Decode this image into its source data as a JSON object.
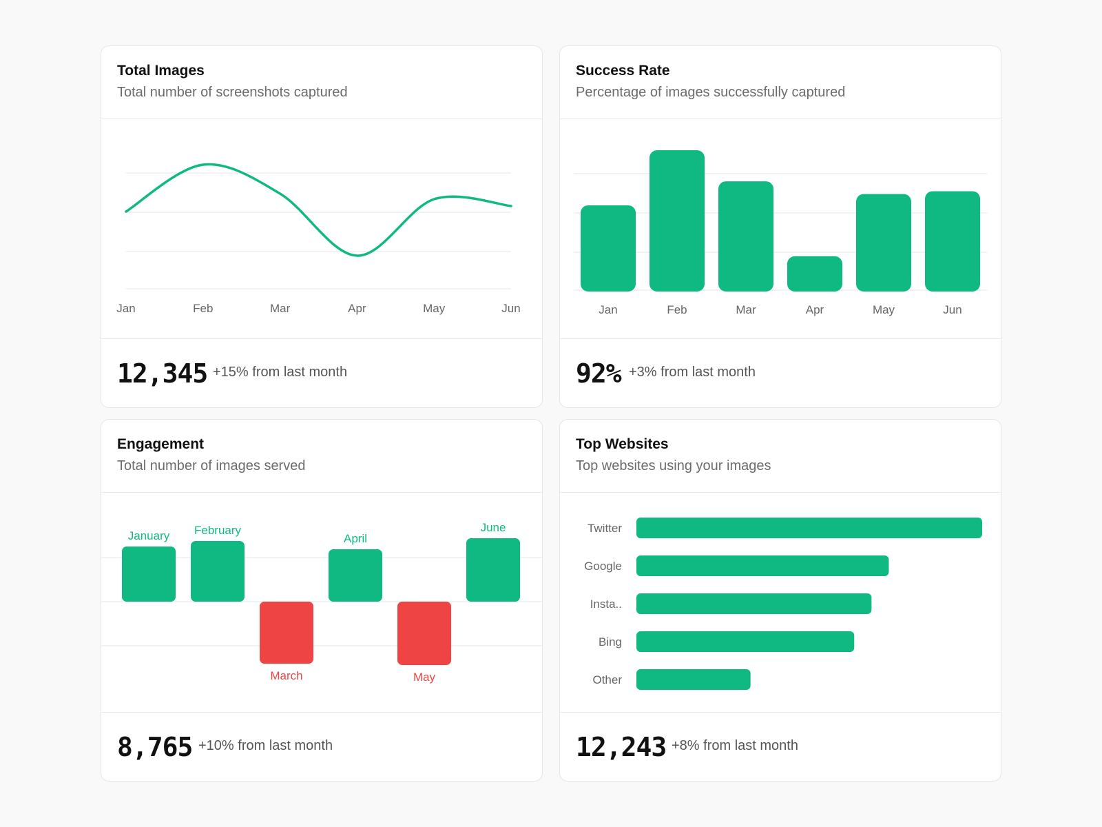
{
  "colors": {
    "accent": "#10b981",
    "negative": "#ef4444",
    "grid": "#e5e5e5",
    "axis_text": "#666666"
  },
  "cards": {
    "total_images": {
      "title": "Total Images",
      "subtitle": "Total number of screenshots captured",
      "value": "12,345",
      "delta": "+15% from last month"
    },
    "success_rate": {
      "title": "Success Rate",
      "subtitle": "Percentage of images successfully captured",
      "value": "92%",
      "delta": "+3% from last month"
    },
    "engagement": {
      "title": "Engagement",
      "subtitle": "Total number of images served",
      "value": "8,765",
      "delta": "+10% from last month"
    },
    "top_websites": {
      "title": "Top Websites",
      "subtitle": "Top websites using your images",
      "value": "12,243",
      "delta": "+8% from last month"
    }
  },
  "chart_data": [
    {
      "type": "line",
      "categories": [
        "Jan",
        "Feb",
        "Mar",
        "Apr",
        "May",
        "Jun"
      ],
      "values": [
        58,
        92,
        71,
        26,
        67,
        62
      ],
      "ylim": [
        0,
        100
      ],
      "grid": true
    },
    {
      "type": "bar",
      "categories": [
        "Jan",
        "Feb",
        "Mar",
        "Apr",
        "May",
        "Jun"
      ],
      "values": [
        61,
        100,
        78,
        25,
        69,
        71
      ],
      "ylim": [
        0,
        100
      ],
      "grid": true
    },
    {
      "type": "bar",
      "categories": [
        "January",
        "February",
        "March",
        "April",
        "May",
        "June"
      ],
      "values": [
        40,
        44,
        -45,
        38,
        -46,
        46
      ],
      "ylim": [
        -80,
        60
      ],
      "grid": true
    },
    {
      "type": "bar",
      "orientation": "horizontal",
      "categories": [
        "Twitter",
        "Google",
        "Insta..",
        "Bing",
        "Other"
      ],
      "values": [
        100,
        73,
        68,
        63,
        33
      ],
      "xlim": [
        0,
        100
      ],
      "grid": false
    }
  ]
}
